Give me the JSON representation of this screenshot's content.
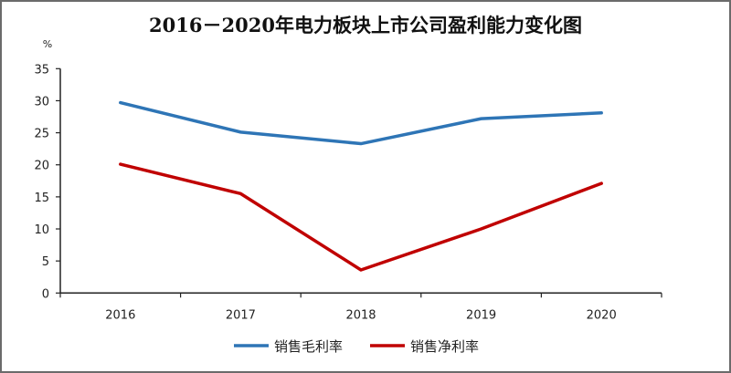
{
  "chart_data": {
    "type": "line",
    "title": "2016－2020年电力板块上市公司盈利能力变化图",
    "ylabel": "%",
    "xlabel": "",
    "categories": [
      "2016",
      "2017",
      "2018",
      "2019",
      "2020"
    ],
    "ylim": [
      0,
      35
    ],
    "yticks": [
      0,
      5,
      10,
      15,
      20,
      25,
      30,
      35
    ],
    "grid": false,
    "legend_position": "bottom",
    "series": [
      {
        "name": "销售毛利率",
        "color": "#2e75b6",
        "values": [
          29.7,
          25.1,
          23.3,
          27.2,
          28.1
        ]
      },
      {
        "name": "销售净利率",
        "color": "#c00000",
        "values": [
          20.1,
          15.5,
          3.6,
          10.0,
          17.1
        ]
      }
    ]
  }
}
